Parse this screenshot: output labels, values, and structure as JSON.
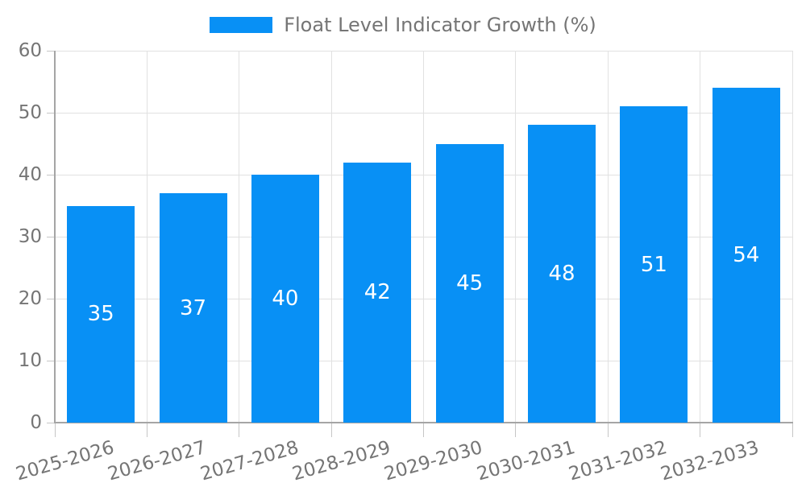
{
  "chart_data": {
    "type": "bar",
    "title": "Float Level Indicator Growth (%)",
    "legend": [
      "Float Level Indicator Growth (%)"
    ],
    "legend_position": "top-center",
    "categories": [
      "2025-2026",
      "2026-2027",
      "2027-2028",
      "2028-2029",
      "2029-2030",
      "2030-2031",
      "2031-2032",
      "2032-2033"
    ],
    "values": [
      35,
      37,
      40,
      42,
      45,
      48,
      51,
      54
    ],
    "xlabel": "",
    "ylabel": "",
    "ylim": [
      0,
      60
    ],
    "yticks": [
      0,
      10,
      20,
      30,
      40,
      50,
      60
    ],
    "grid": true,
    "value_labels_inside_bars": true,
    "x_labels_rotation_deg": -16,
    "bar_color": "#0890f5",
    "value_label_color": "#ffffff",
    "axis_label_color": "#757575",
    "gridline_color": "#e1e1e1",
    "tick_color": "#c6c6c6",
    "axis_line_color": "#a5a5a5",
    "background_color": "#ffffff"
  }
}
